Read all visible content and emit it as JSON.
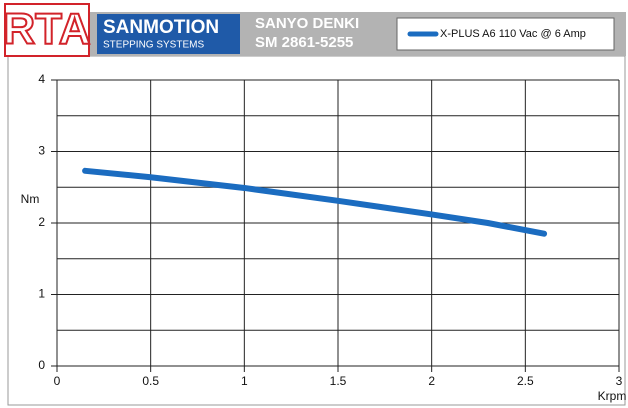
{
  "chart_data": {
    "type": "line",
    "header": {
      "logo": "RTA",
      "brand": "SANMOTION",
      "brand_sub": "STEPPING SYSTEMS",
      "maker": "SANYO DENKI",
      "model": "SM 2861-5255"
    },
    "xlabel": "Krpm",
    "ylabel": "Nm",
    "x": [
      0.15,
      0.5,
      1.0,
      1.5,
      2.0,
      2.3,
      2.6
    ],
    "series": [
      {
        "name": "X-PLUS A6 110 Vac @ 6 Amp",
        "color": "#1b6cc0",
        "values": [
          2.73,
          2.64,
          2.49,
          2.31,
          2.12,
          2.0,
          1.85
        ]
      }
    ],
    "xlim": [
      0,
      3
    ],
    "xticks": [
      0,
      0.5,
      1,
      1.5,
      2,
      2.5,
      3
    ],
    "ylim": [
      0,
      4
    ],
    "yticks": [
      0,
      1,
      2,
      3,
      4
    ],
    "minor_yticks": [
      0.5,
      1.5,
      2.5,
      3.5
    ],
    "grid": true
  }
}
